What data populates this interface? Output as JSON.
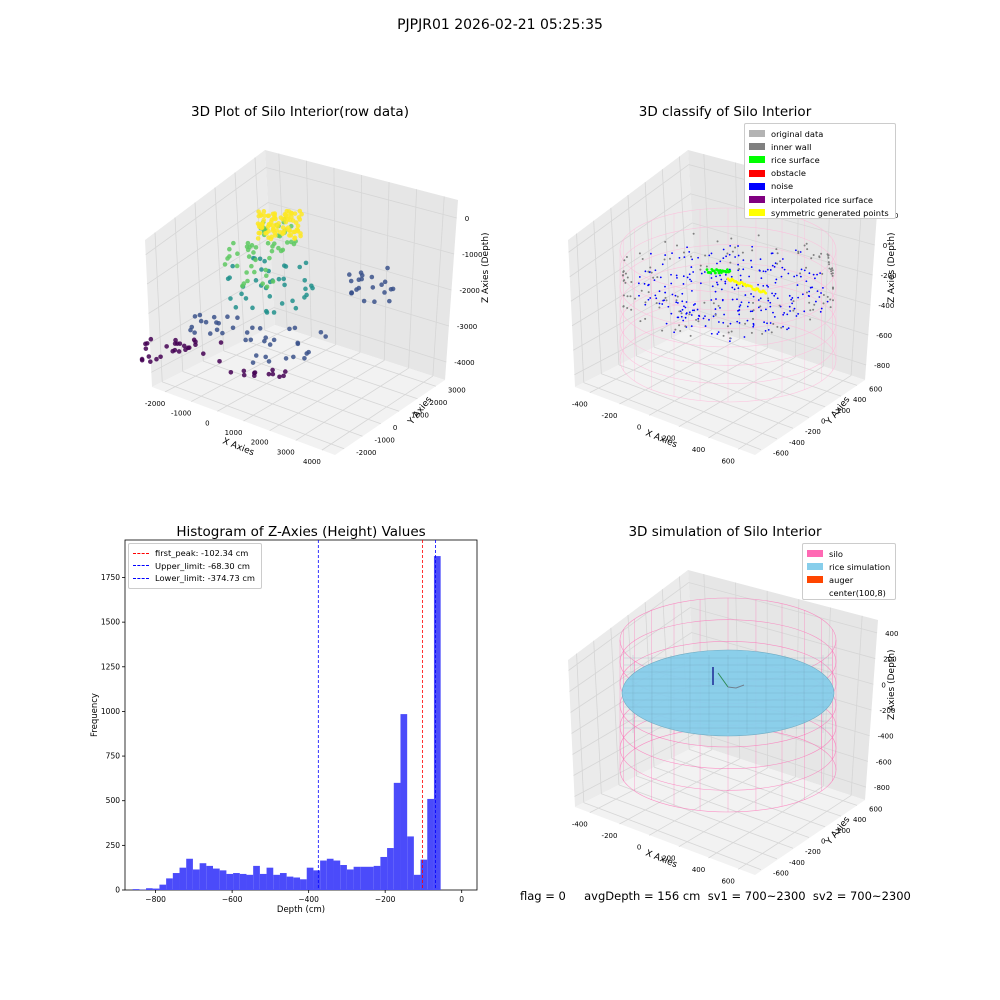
{
  "figure": {
    "suptitle": "PJPJR01 2026-02-21 05:25:35",
    "bottom_text": "flag = 0     avgDepth = 156 cm  sv1 = 700~2300  sv2 = 700~2300"
  },
  "chart_data": [
    {
      "id": "raw",
      "type": "scatter",
      "title": "3D Plot of Silo Interior(row data)",
      "xlabel": "X Axies",
      "ylabel": "Y Axies",
      "zlabel": "Z Axies (Depth)",
      "x_ticks": [
        "-2000",
        "-1000",
        "0",
        "1000",
        "2000",
        "3000",
        "4000"
      ],
      "y_ticks": [
        "-2000",
        "-1000",
        "0",
        "1000",
        "2000",
        "3000"
      ],
      "z_ticks": [
        "0",
        "-1000",
        "-2000",
        "-3000",
        "-4000"
      ],
      "colormap": "viridis",
      "grid": true
    },
    {
      "id": "classify",
      "type": "scatter",
      "title": "3D classify of Silo Interior",
      "xlabel": "X Axies",
      "ylabel": "Y Axies",
      "zlabel": "Z Axies (Depth)",
      "x_ticks": [
        "-400",
        "-200",
        "0",
        "200",
        "400",
        "600"
      ],
      "y_ticks": [
        "-600",
        "-400",
        "-200",
        "0",
        "200",
        "400",
        "600"
      ],
      "z_ticks": [
        "200",
        "0",
        "-200",
        "-400",
        "-600",
        "-800"
      ],
      "legend_position": "top-right",
      "legend": [
        {
          "label": "original data",
          "color": "#b3b3b3"
        },
        {
          "label": "inner wall",
          "color": "#808080"
        },
        {
          "label": "rice surface",
          "color": "#00ff00"
        },
        {
          "label": "obstacle",
          "color": "#ff0000"
        },
        {
          "label": "noise",
          "color": "#0000ff"
        },
        {
          "label": "interpolated rice surface",
          "color": "#800080"
        },
        {
          "label": "symmetric generated points",
          "color": "#ffff00"
        }
      ],
      "grid": true
    },
    {
      "id": "histogram",
      "type": "bar",
      "title": "Histogram of Z-Axies (Height) Values",
      "xlabel": "Depth (cm)",
      "ylabel": "Frequency",
      "xlim": [
        -880,
        40
      ],
      "ylim": [
        0,
        1960
      ],
      "x_ticks": [
        -800,
        -600,
        -400,
        -200,
        0
      ],
      "y_ticks": [
        0,
        250,
        500,
        750,
        1000,
        1250,
        1500,
        1750
      ],
      "bin_start": -860,
      "bin_width": 17.5,
      "values": [
        5,
        2,
        10,
        8,
        30,
        65,
        95,
        125,
        175,
        115,
        150,
        135,
        120,
        110,
        90,
        95,
        90,
        85,
        135,
        90,
        125,
        85,
        95,
        75,
        70,
        60,
        125,
        110,
        165,
        175,
        165,
        140,
        115,
        130,
        130,
        130,
        135,
        185,
        235,
        600,
        985,
        300,
        85,
        170,
        510,
        1870
      ],
      "bar_color": "#4b4bfa",
      "lines": [
        {
          "label": "first_peak: -102.34 cm",
          "x": -102.34,
          "color": "#ff0000"
        },
        {
          "label": "Upper_limit: -68.30 cm",
          "x": -68.3,
          "color": "#0000ff"
        },
        {
          "label": "Lower_limit: -374.73 cm",
          "x": -374.73,
          "color": "#0000ff"
        }
      ],
      "legend_position": "top-left"
    },
    {
      "id": "simulation",
      "type": "scatter",
      "title": "3D simulation of Silo Interior",
      "xlabel": "X Axies",
      "ylabel": "Y Axies",
      "zlabel": "Z Axies (Depth)",
      "x_ticks": [
        "-400",
        "-200",
        "0",
        "200",
        "400",
        "600"
      ],
      "y_ticks": [
        "-600",
        "-400",
        "-200",
        "0",
        "200",
        "400",
        "600"
      ],
      "z_ticks": [
        "400",
        "200",
        "0",
        "-200",
        "-400",
        "-600",
        "-800"
      ],
      "legend_position": "top-right",
      "legend": [
        {
          "label": "silo",
          "color": "#ff69b4"
        },
        {
          "label": "rice simulation",
          "color": "#87ceeb"
        },
        {
          "label": "auger",
          "color": "#ff4500"
        },
        {
          "label": "center(100,8)",
          "color": "none"
        }
      ],
      "grid": true
    }
  ]
}
